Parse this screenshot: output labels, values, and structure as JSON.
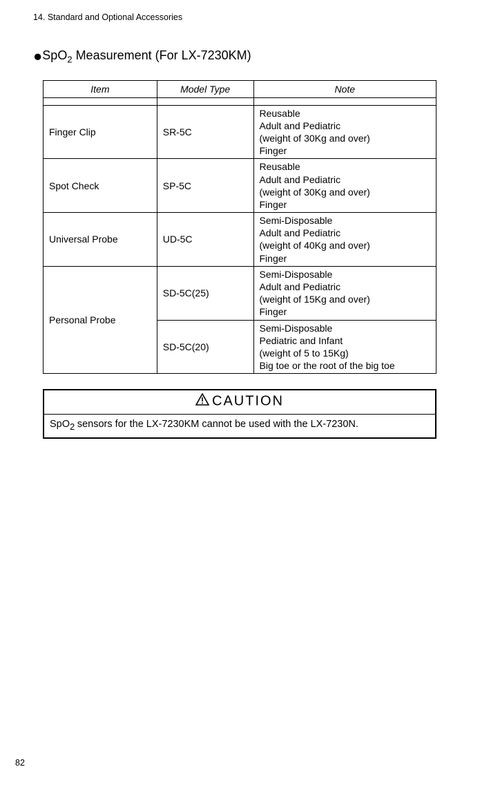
{
  "header": "14. Standard and Optional Accessories",
  "section": {
    "bullet": "●",
    "title_prefix": "SpO",
    "title_sub": "2",
    "title_suffix": " Measurement (For LX-7230KM)"
  },
  "table": {
    "headers": {
      "item": "Item",
      "model": "Model Type",
      "note": "Note"
    },
    "rows": [
      {
        "item": "Finger Clip",
        "model": "SR-5C",
        "note_lines": [
          "Reusable",
          "Adult and Pediatric",
          "(weight of 30Kg and over)",
          "Finger"
        ],
        "rowspan_item": 1
      },
      {
        "item": "Spot Check",
        "model": "SP-5C",
        "note_lines": [
          "Reusable",
          "Adult and Pediatric",
          "(weight of 30Kg and over)",
          "Finger"
        ],
        "rowspan_item": 1
      },
      {
        "item": "Universal Probe",
        "model": "UD-5C",
        "note_lines": [
          "Semi-Disposable",
          "Adult and Pediatric",
          "(weight of 40Kg and over)",
          "Finger"
        ],
        "rowspan_item": 1
      },
      {
        "item": "Personal Probe",
        "model": "SD-5C(25)",
        "note_lines": [
          "Semi-Disposable",
          "Adult and Pediatric",
          "(weight of 15Kg and over)",
          "Finger"
        ],
        "rowspan_item": 2
      },
      {
        "item": "",
        "model": "SD-5C(20)",
        "note_lines": [
          "Semi-Disposable",
          "Pediatric and Infant",
          "(weight of 5 to 15Kg)",
          "Big toe or the root of the big toe"
        ],
        "rowspan_item": 0
      }
    ]
  },
  "caution": {
    "label": "CAUTION",
    "body_prefix": "SpO",
    "body_sub": "2 ",
    "body_suffix": "sensors for the LX-7230KM cannot be used with the LX-7230N."
  },
  "page_number": "82"
}
